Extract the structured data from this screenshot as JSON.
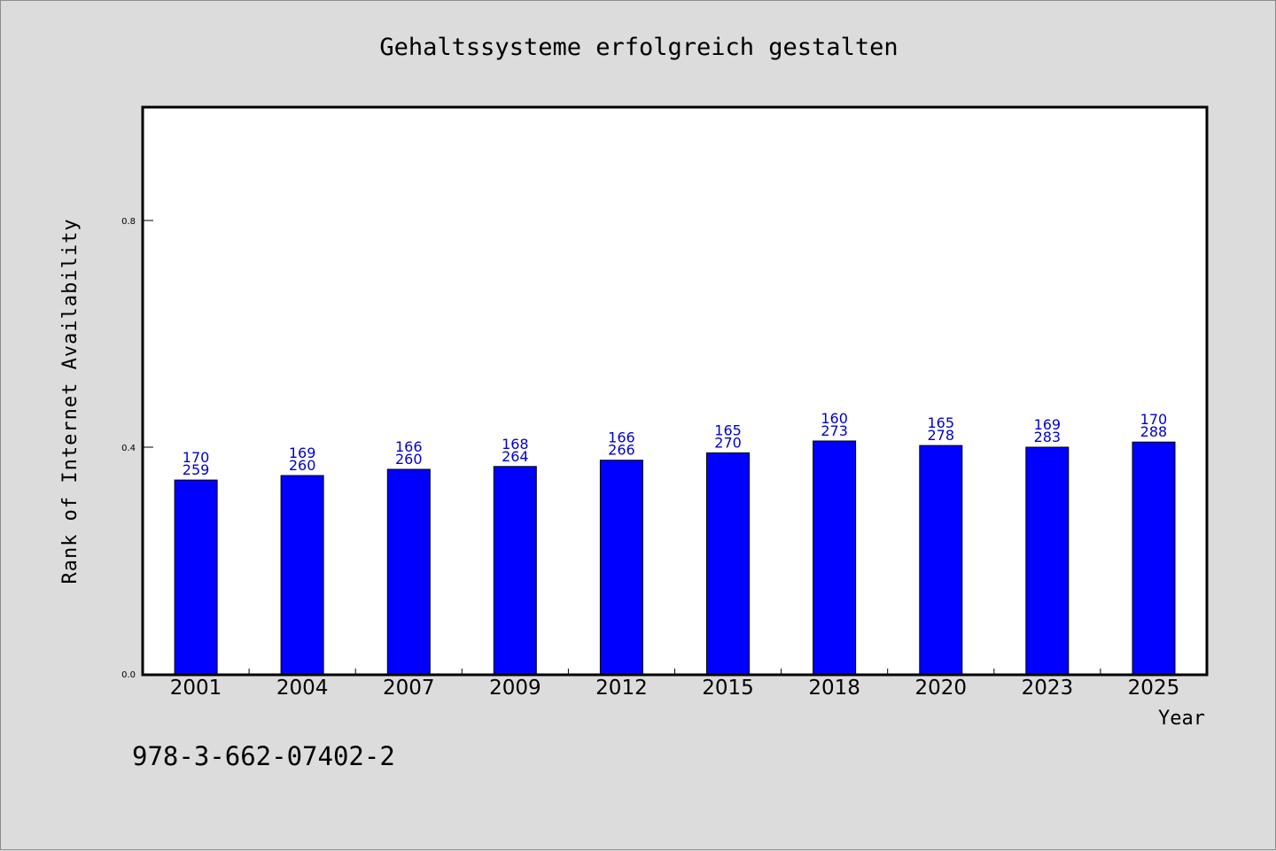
{
  "chart_data": {
    "type": "bar",
    "title": "Gehaltssysteme erfolgreich gestalten",
    "xlabel": "Year",
    "ylabel": "Rank of Internet Availability",
    "ylim": [
      0,
      1.0
    ],
    "yticks": [
      0.0,
      0.4,
      0.8
    ],
    "ytick_labels": [
      "0.0",
      "0.4",
      "0.8"
    ],
    "categories": [
      "2001",
      "2004",
      "2007",
      "2009",
      "2012",
      "2015",
      "2018",
      "2020",
      "2023",
      "2025"
    ],
    "values": [
      0.342,
      0.35,
      0.361,
      0.366,
      0.377,
      0.39,
      0.411,
      0.403,
      0.4,
      0.409
    ],
    "bar_labels": [
      [
        "170",
        "259"
      ],
      [
        "169",
        "260"
      ],
      [
        "166",
        "260"
      ],
      [
        "168",
        "264"
      ],
      [
        "166",
        "266"
      ],
      [
        "165",
        "270"
      ],
      [
        "160",
        "273"
      ],
      [
        "165",
        "278"
      ],
      [
        "169",
        "283"
      ],
      [
        "170",
        "288"
      ]
    ],
    "bar_color": "#0000ff",
    "label_color": "#0000cc",
    "grid": false,
    "legend": "none"
  },
  "footer": {
    "isbn": "978-3-662-07402-2"
  },
  "colors": {
    "background": "#dcdcdc",
    "plot_background": "#ffffff"
  }
}
